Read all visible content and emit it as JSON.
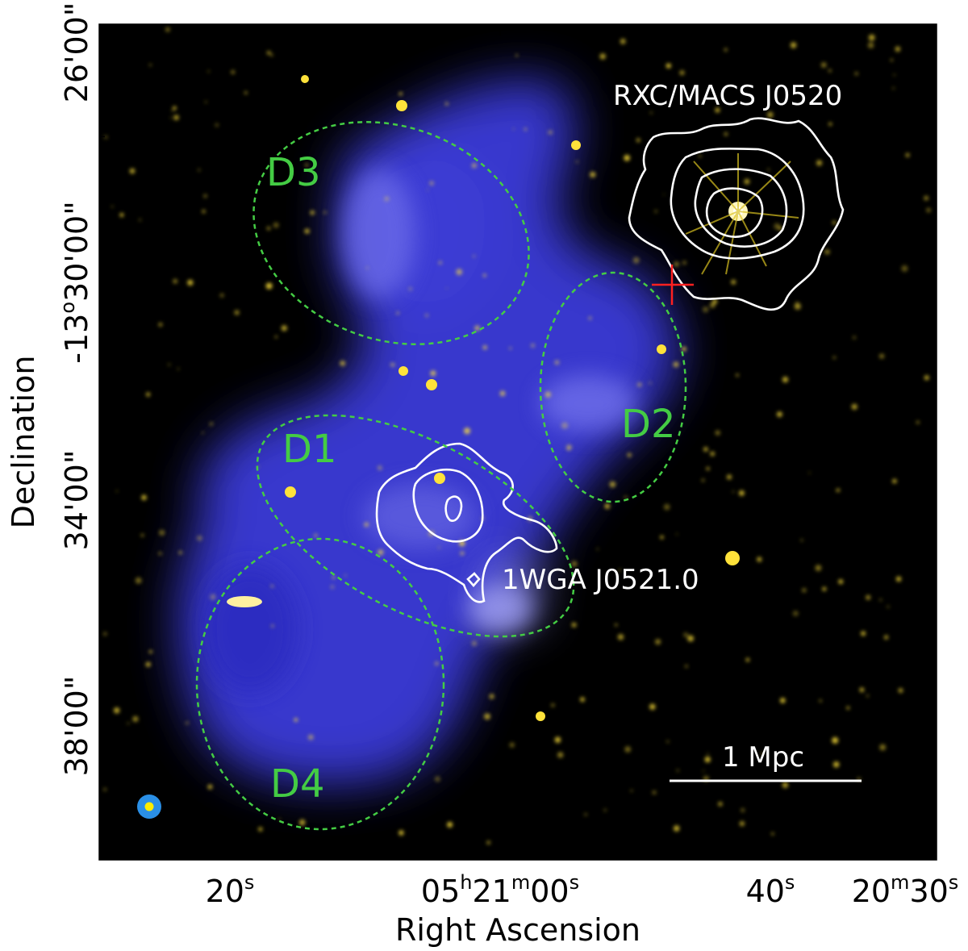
{
  "figure": {
    "xlabel": "Right Ascension",
    "ylabel": "Declination",
    "x_ticks": [
      {
        "parts": [
          [
            "20",
            "n"
          ],
          [
            "s",
            "sup"
          ]
        ]
      },
      {
        "parts": [
          [
            "05",
            "n"
          ],
          [
            "h",
            "sup"
          ],
          [
            "21",
            "n"
          ],
          [
            "m",
            "sup"
          ],
          [
            "00",
            "n"
          ],
          [
            "s",
            "sup"
          ]
        ]
      },
      {
        "parts": [
          [
            "40",
            "n"
          ],
          [
            "s",
            "sup"
          ]
        ]
      },
      {
        "parts": [
          [
            "20",
            "n"
          ],
          [
            "m",
            "sup"
          ],
          [
            "30",
            "n"
          ],
          [
            "s",
            "sup"
          ]
        ]
      }
    ],
    "y_ticks": [
      {
        "parts": [
          [
            "26'00",
            "n"
          ],
          [
            "\"",
            "n"
          ]
        ]
      },
      {
        "parts": [
          [
            "-13",
            "n"
          ],
          [
            "o",
            "sup"
          ],
          [
            "30'00",
            "n"
          ],
          [
            "\"",
            "n"
          ]
        ]
      },
      {
        "parts": [
          [
            "34'00",
            "n"
          ],
          [
            "\"",
            "n"
          ]
        ]
      },
      {
        "parts": [
          [
            "38'00",
            "n"
          ],
          [
            "\"",
            "n"
          ]
        ]
      }
    ],
    "regions": [
      "D1",
      "D2",
      "D3",
      "D4"
    ],
    "sources": [
      "RXC/MACS J0520",
      "1WGA J0521.0"
    ],
    "scale_bar": "1 Mpc",
    "colors": {
      "background": "#000000",
      "diffuse_emission": "#3a3ad8",
      "optical_sources": "#ffe23a",
      "contours": "#ffffff",
      "regions": "#44cc44",
      "marker": "#ff2020",
      "beam_outer": "#2a8fe6",
      "beam_inner": "#ffee00"
    }
  }
}
